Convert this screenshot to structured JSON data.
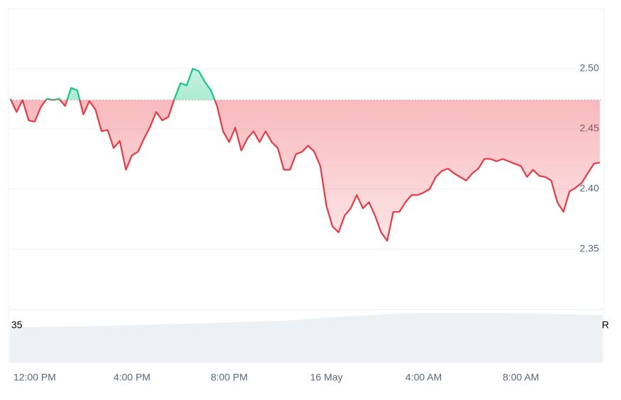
{
  "chart_data": {
    "type": "line",
    "baseline": 2.474,
    "up_color": "#16c784",
    "down_color": "#ea3943",
    "grid": true,
    "volume_label_left": "35",
    "volume_label_right": "R",
    "xlim": [
      -1.02,
      23.36
    ],
    "xticks": [
      {
        "value": 0,
        "label": "12:00 PM"
      },
      {
        "value": 4,
        "label": "4:00 PM"
      },
      {
        "value": 8,
        "label": "8:00 PM"
      },
      {
        "value": 12,
        "label": "16 May"
      },
      {
        "value": 16,
        "label": "4:00 AM"
      },
      {
        "value": 20,
        "label": "8:00 AM"
      }
    ],
    "ylim": [
      2.3,
      2.55
    ],
    "yticks": [
      2.35,
      {
        "value": 2.4,
        "label": "2.40"
      },
      2.45,
      {
        "value": 2.5,
        "label": "2.50"
      }
    ],
    "x": [
      -1,
      -0.75,
      -0.5,
      -0.25,
      0,
      0.25,
      0.5,
      0.75,
      1,
      1.25,
      1.5,
      1.75,
      2,
      2.25,
      2.5,
      2.75,
      3,
      3.25,
      3.5,
      3.75,
      4,
      4.25,
      4.5,
      4.75,
      5,
      5.25,
      5.5,
      5.75,
      6,
      6.25,
      6.5,
      6.75,
      7,
      7.25,
      7.5,
      7.75,
      8,
      8.25,
      8.5,
      8.75,
      9,
      9.25,
      9.5,
      9.75,
      10,
      10.25,
      10.5,
      10.75,
      11,
      11.25,
      11.5,
      11.75,
      12,
      12.25,
      12.5,
      12.75,
      13,
      13.25,
      13.5,
      13.75,
      14,
      14.25,
      14.5,
      14.75,
      15,
      15.25,
      15.5,
      15.75,
      16,
      16.25,
      16.5,
      16.75,
      17,
      17.25,
      17.5,
      17.75,
      18,
      18.25,
      18.5,
      18.75,
      19,
      19.25,
      19.5,
      19.75,
      20,
      20.25,
      20.5,
      20.75,
      21,
      21.25,
      21.5,
      21.75,
      22,
      22.25,
      22.5,
      22.75,
      23,
      23.25
    ],
    "values": [
      2.475,
      2.464,
      2.474,
      2.457,
      2.456,
      2.468,
      2.475,
      2.474,
      2.475,
      2.469,
      2.484,
      2.482,
      2.462,
      2.473,
      2.466,
      2.448,
      2.449,
      2.434,
      2.44,
      2.416,
      2.428,
      2.431,
      2.442,
      2.452,
      2.464,
      2.457,
      2.46,
      2.475,
      2.488,
      2.486,
      2.5,
      2.498,
      2.489,
      2.482,
      2.469,
      2.448,
      2.439,
      2.451,
      2.432,
      2.442,
      2.448,
      2.439,
      2.448,
      2.439,
      2.434,
      2.416,
      2.416,
      2.429,
      2.431,
      2.436,
      2.431,
      2.419,
      2.386,
      2.369,
      2.364,
      2.378,
      2.384,
      2.395,
      2.384,
      2.389,
      2.378,
      2.364,
      2.357,
      2.381,
      2.381,
      2.389,
      2.395,
      2.395,
      2.397,
      2.4,
      2.41,
      2.415,
      2.417,
      2.413,
      2.41,
      2.407,
      2.413,
      2.417,
      2.425,
      2.425,
      2.423,
      2.425,
      2.423,
      2.421,
      2.419,
      2.41,
      2.416,
      2.411,
      2.41,
      2.407,
      2.389,
      2.381,
      2.398,
      2.401,
      2.405,
      2.413,
      2.421,
      2.422
    ]
  }
}
